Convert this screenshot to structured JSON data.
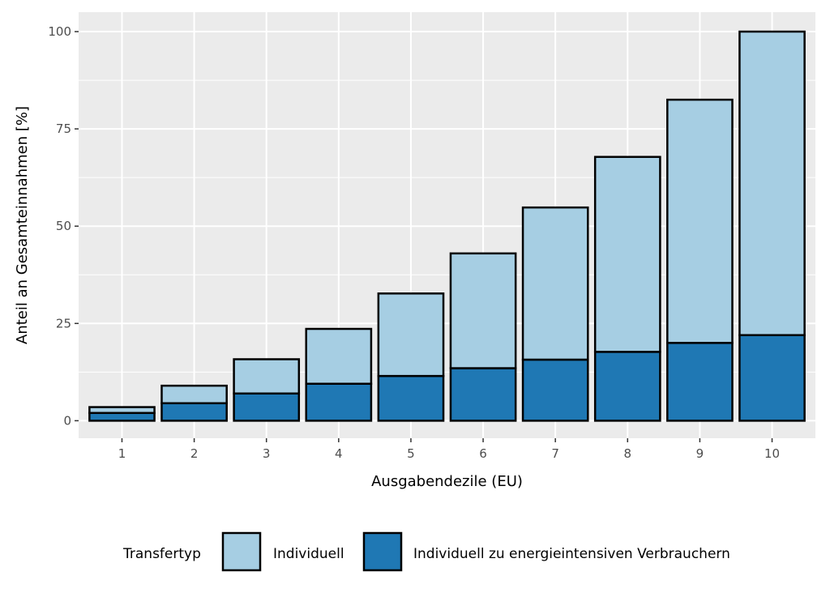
{
  "chart_data": {
    "type": "bar",
    "stacked": true,
    "xlabel": "Ausgabendezile (EU)",
    "ylabel": "Anteil an Gesamteinnahmen [%]",
    "categories": [
      "1",
      "2",
      "3",
      "4",
      "5",
      "6",
      "7",
      "8",
      "9",
      "10"
    ],
    "series": [
      {
        "name": "Individuell zu energieintensiven Verbrauchern",
        "color": "#1f78b4",
        "values": [
          2.0,
          4.5,
          7.0,
          9.5,
          11.5,
          13.5,
          15.7,
          17.7,
          20.0,
          22.0
        ]
      },
      {
        "name": "Individuell",
        "color": "#a6cee3",
        "values": [
          1.5,
          4.5,
          8.8,
          14.1,
          21.2,
          29.5,
          39.1,
          50.1,
          62.5,
          78.0
        ]
      }
    ],
    "ylim": [
      -4.5,
      105
    ],
    "yticks": [
      0,
      25,
      50,
      75,
      100
    ],
    "grid": true,
    "panel_background": "#ebebeb",
    "legend": {
      "title": "Transfertyp",
      "position": "bottom",
      "entries": [
        "Individuell",
        "Individuell zu energieintensiven Verbrauchern"
      ]
    }
  }
}
